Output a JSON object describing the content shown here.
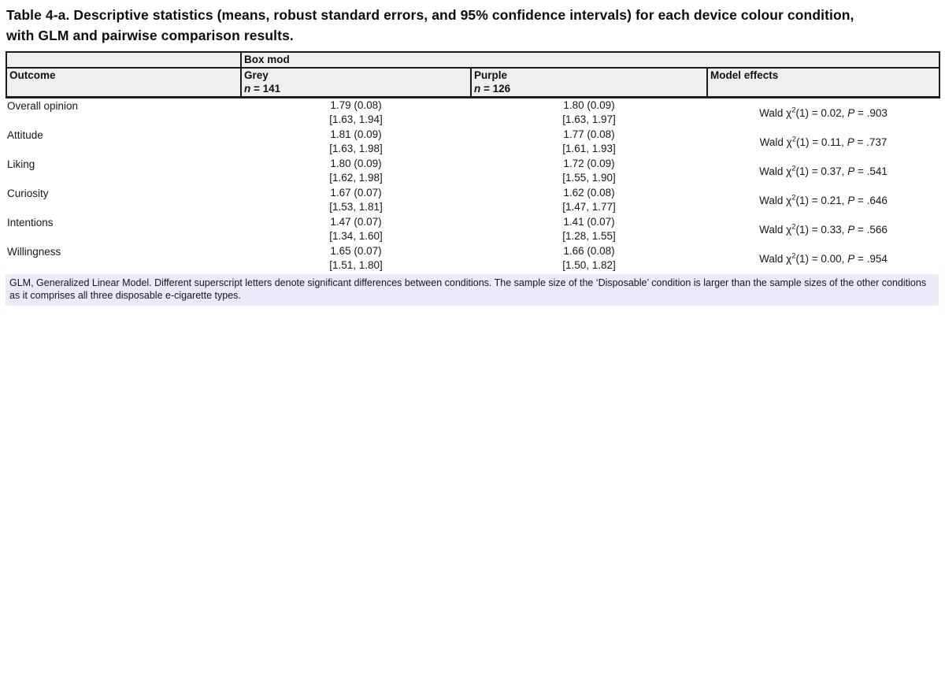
{
  "title": "Table 4-a. Descriptive statistics (means, robust standard errors, and 95% confidence intervals) for each device colour condition, with GLM and pairwise comparison results.",
  "table": {
    "group_header": "Box mod",
    "columns": {
      "outcome": "Outcome",
      "grey": {
        "name": "Grey",
        "n_label": "n",
        "n_value": "= 141"
      },
      "purple": {
        "name": "Purple",
        "n_label": "n",
        "n_value": "= 126"
      },
      "model": "Model effects"
    },
    "labels": {
      "wald_prefix": "Wald χ",
      "wald_sup": "2",
      "p_label": "P"
    },
    "rows": [
      {
        "label": "Overall opinion",
        "grey_mean": "1.79 (0.08)",
        "grey_ci": "[1.63, 1.94]",
        "purple_mean": "1.80 (0.09)",
        "purple_ci": "[1.63, 1.97]",
        "chi": "(1) = 0.02,",
        "p": "= .903"
      },
      {
        "label": "Attitude",
        "grey_mean": "1.81 (0.09)",
        "grey_ci": "[1.63, 1.98]",
        "purple_mean": "1.77 (0.08)",
        "purple_ci": "[1.61, 1.93]",
        "chi": "(1) = 0.11,",
        "p": "= .737"
      },
      {
        "label": "Liking",
        "grey_mean": "1.80 (0.09)",
        "grey_ci": "[1.62, 1.98]",
        "purple_mean": "1.72 (0.09)",
        "purple_ci": "[1.55, 1.90]",
        "chi": "(1) = 0.37,",
        "p": "= .541"
      },
      {
        "label": "Curiosity",
        "grey_mean": "1.67 (0.07)",
        "grey_ci": "[1.53, 1.81]",
        "purple_mean": "1.62 (0.08)",
        "purple_ci": "[1.47, 1.77]",
        "chi": "(1) = 0.21,",
        "p": "= .646"
      },
      {
        "label": "Intentions",
        "grey_mean": "1.47 (0.07)",
        "grey_ci": "[1.34, 1.60]",
        "purple_mean": "1.41 (0.07)",
        "purple_ci": "[1.28, 1.55]",
        "chi": "(1) = 0.33,",
        "p": "= .566"
      },
      {
        "label": "Willingness",
        "grey_mean": "1.65 (0.07)",
        "grey_ci": "[1.51, 1.80]",
        "purple_mean": "1.66 (0.08)",
        "purple_ci": "[1.50, 1.82]",
        "chi": "(1) = 0.00,",
        "p": "= .954"
      }
    ]
  },
  "footnote": "GLM, Generalized Linear Model. Different superscript letters denote significant differences between conditions. The sample size of the ‘Disposable’ condition is larger than the sample sizes of the other conditions as it comprises all three disposable e-cigarette types.",
  "colors": {
    "header_bg": "#efefef",
    "footnote_bg": "#eaeaf8",
    "border": "#1c1c1c"
  }
}
